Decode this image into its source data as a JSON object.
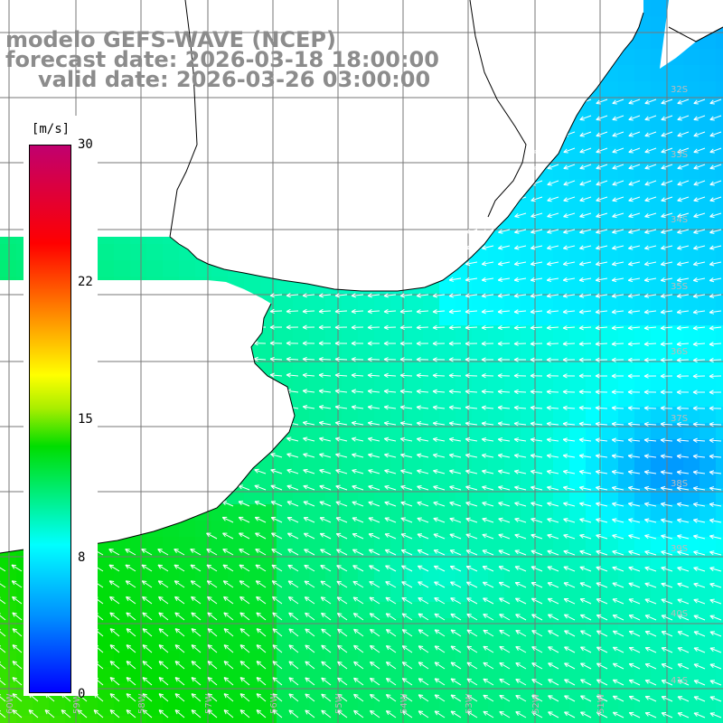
{
  "titles": {
    "line1": "modelo GEFS-WAVE (NCEP)",
    "line2": "forecast date: 2026-03-18 18:00:00",
    "line3": "valid date: 2026-03-26 03:00:00"
  },
  "colorbar": {
    "unit": "[m/s]",
    "ticks": [
      "30",
      "22",
      "15",
      "8",
      "0"
    ],
    "tick_values": [
      30,
      22,
      15,
      8,
      0
    ],
    "range": [
      0,
      30
    ],
    "colors": [
      "#0000ff",
      "#00aaff",
      "#00ffff",
      "#00ff00",
      "#ffff00",
      "#ff8000",
      "#ff0000",
      "#c0006f"
    ]
  },
  "map": {
    "lon_labels": [
      "60W",
      "59W",
      "58W",
      "57W",
      "56W",
      "55W",
      "54W",
      "53W",
      "52W",
      "51W"
    ],
    "lat_labels": [
      "32S",
      "33S",
      "34S",
      "35S",
      "36S",
      "37S",
      "38S",
      "39S",
      "40S",
      "41S"
    ],
    "land_color": "#ffffff",
    "grid_color": "#777777",
    "arrow_color": "#ffffff",
    "coast_color": "#000000"
  }
}
